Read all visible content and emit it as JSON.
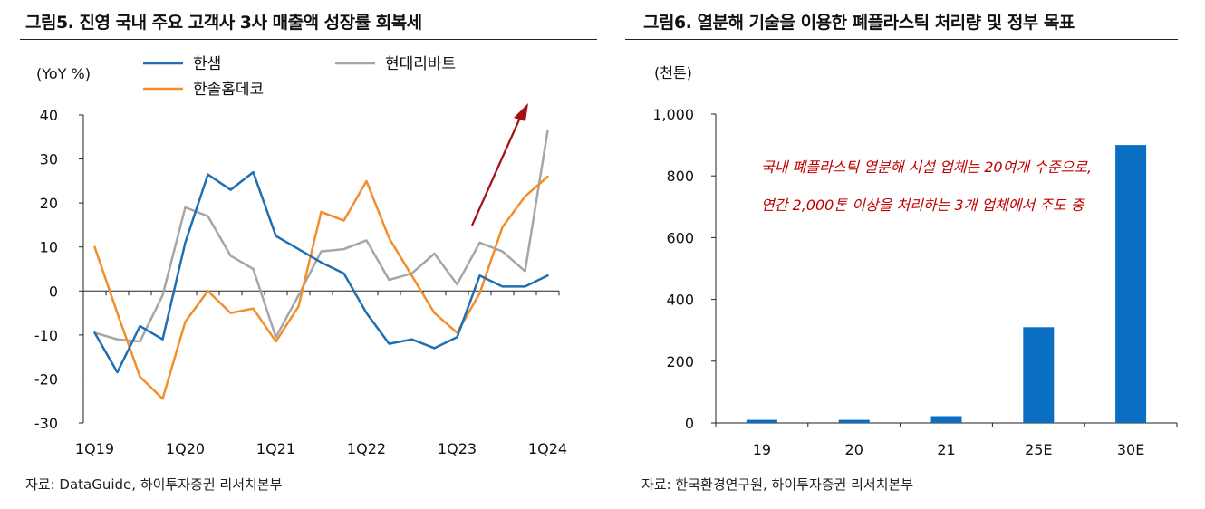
{
  "colors": {
    "hansem": "#1f6fb4",
    "hyundai": "#a6a6a6",
    "hansol": "#f28e2c",
    "bar": "#0a6fc2",
    "annotation": "#c00000",
    "arrow": "#a50f15"
  },
  "left_chart": {
    "title": "그림5. 진영 국내 주요 고객사 3사 매출액 성장률 회복세",
    "source": "자료: DataGuide, 하이투자증권 리서치본부"
  },
  "right_chart": {
    "title": "그림6. 열분해 기술을 이용한 폐플라스틱 처리량 및 정부 목표",
    "source": "자료: 한국환경연구원, 하이투자증권 리서치본부",
    "annotation_lines": [
      "국내 폐플라스틱 열분해 시설 업체는 20여개 수준으로,",
      "연간 2,000톤 이상을 처리하는 3개 업체에서 주도 중"
    ]
  },
  "chart_data": [
    {
      "type": "line",
      "title": "그림5. 진영 국내 주요 고객사 3사 매출액 성장률 회복세",
      "ylabel": "(YoY %)",
      "xlabel": "",
      "ylim": [
        -30,
        40
      ],
      "yticks": [
        "40",
        "30",
        "20",
        "10",
        "0",
        "-10",
        "-20",
        "-30"
      ],
      "ytick_values": [
        40,
        30,
        20,
        10,
        0,
        -10,
        -20,
        -30
      ],
      "x": [
        "1Q19",
        "2Q19",
        "3Q19",
        "4Q19",
        "1Q20",
        "2Q20",
        "3Q20",
        "4Q20",
        "1Q21",
        "2Q21",
        "3Q21",
        "4Q21",
        "1Q22",
        "2Q22",
        "3Q22",
        "4Q22",
        "1Q23",
        "2Q23",
        "3Q23",
        "4Q23",
        "1Q24"
      ],
      "xtick_labels": [
        "1Q19",
        "1Q20",
        "1Q21",
        "1Q22",
        "1Q23",
        "1Q24"
      ],
      "xtick_indices": [
        0,
        4,
        8,
        12,
        16,
        20
      ],
      "grid": false,
      "legend_position": "top",
      "series": [
        {
          "name": "한샘",
          "color_key": "hansem",
          "values": [
            -9.5,
            -18.5,
            -8,
            -11,
            11,
            26.5,
            23,
            27,
            12.5,
            9.5,
            6.5,
            4,
            -5,
            -12,
            -11,
            -13,
            -10.5,
            3.5,
            1,
            1,
            3.5
          ]
        },
        {
          "name": "현대리바트",
          "color_key": "hyundai",
          "values": [
            -9.5,
            -11,
            -11.5,
            -1,
            19,
            17,
            8,
            5,
            -10.5,
            -1,
            9,
            9.5,
            11.5,
            2.5,
            4,
            8.5,
            1.5,
            11,
            9,
            4.5,
            36.5
          ]
        },
        {
          "name": "한솔홈데코",
          "color_key": "hansol",
          "values": [
            10,
            -5,
            -19.5,
            -24.5,
            -7,
            0,
            -5,
            -4,
            -11.5,
            -3.5,
            18,
            16,
            25,
            12,
            3.5,
            -5,
            -9.5,
            -0.5,
            14.5,
            21.5,
            26
          ]
        }
      ],
      "annotation": "upward arrow indicating recovery from 1Q23 to 1Q24"
    },
    {
      "type": "bar",
      "title": "그림6. 열분해 기술을 이용한 폐플라스틱 처리량 및 정부 목표",
      "ylabel": "(천톤)",
      "xlabel": "",
      "ylim": [
        0,
        1000
      ],
      "yticks": [
        "1,000",
        "800",
        "600",
        "400",
        "200",
        "0"
      ],
      "ytick_values": [
        1000,
        800,
        600,
        400,
        200,
        0
      ],
      "categories": [
        "19",
        "20",
        "21",
        "25E",
        "30E"
      ],
      "values": [
        10,
        10,
        22,
        310,
        900
      ],
      "grid": false
    }
  ]
}
